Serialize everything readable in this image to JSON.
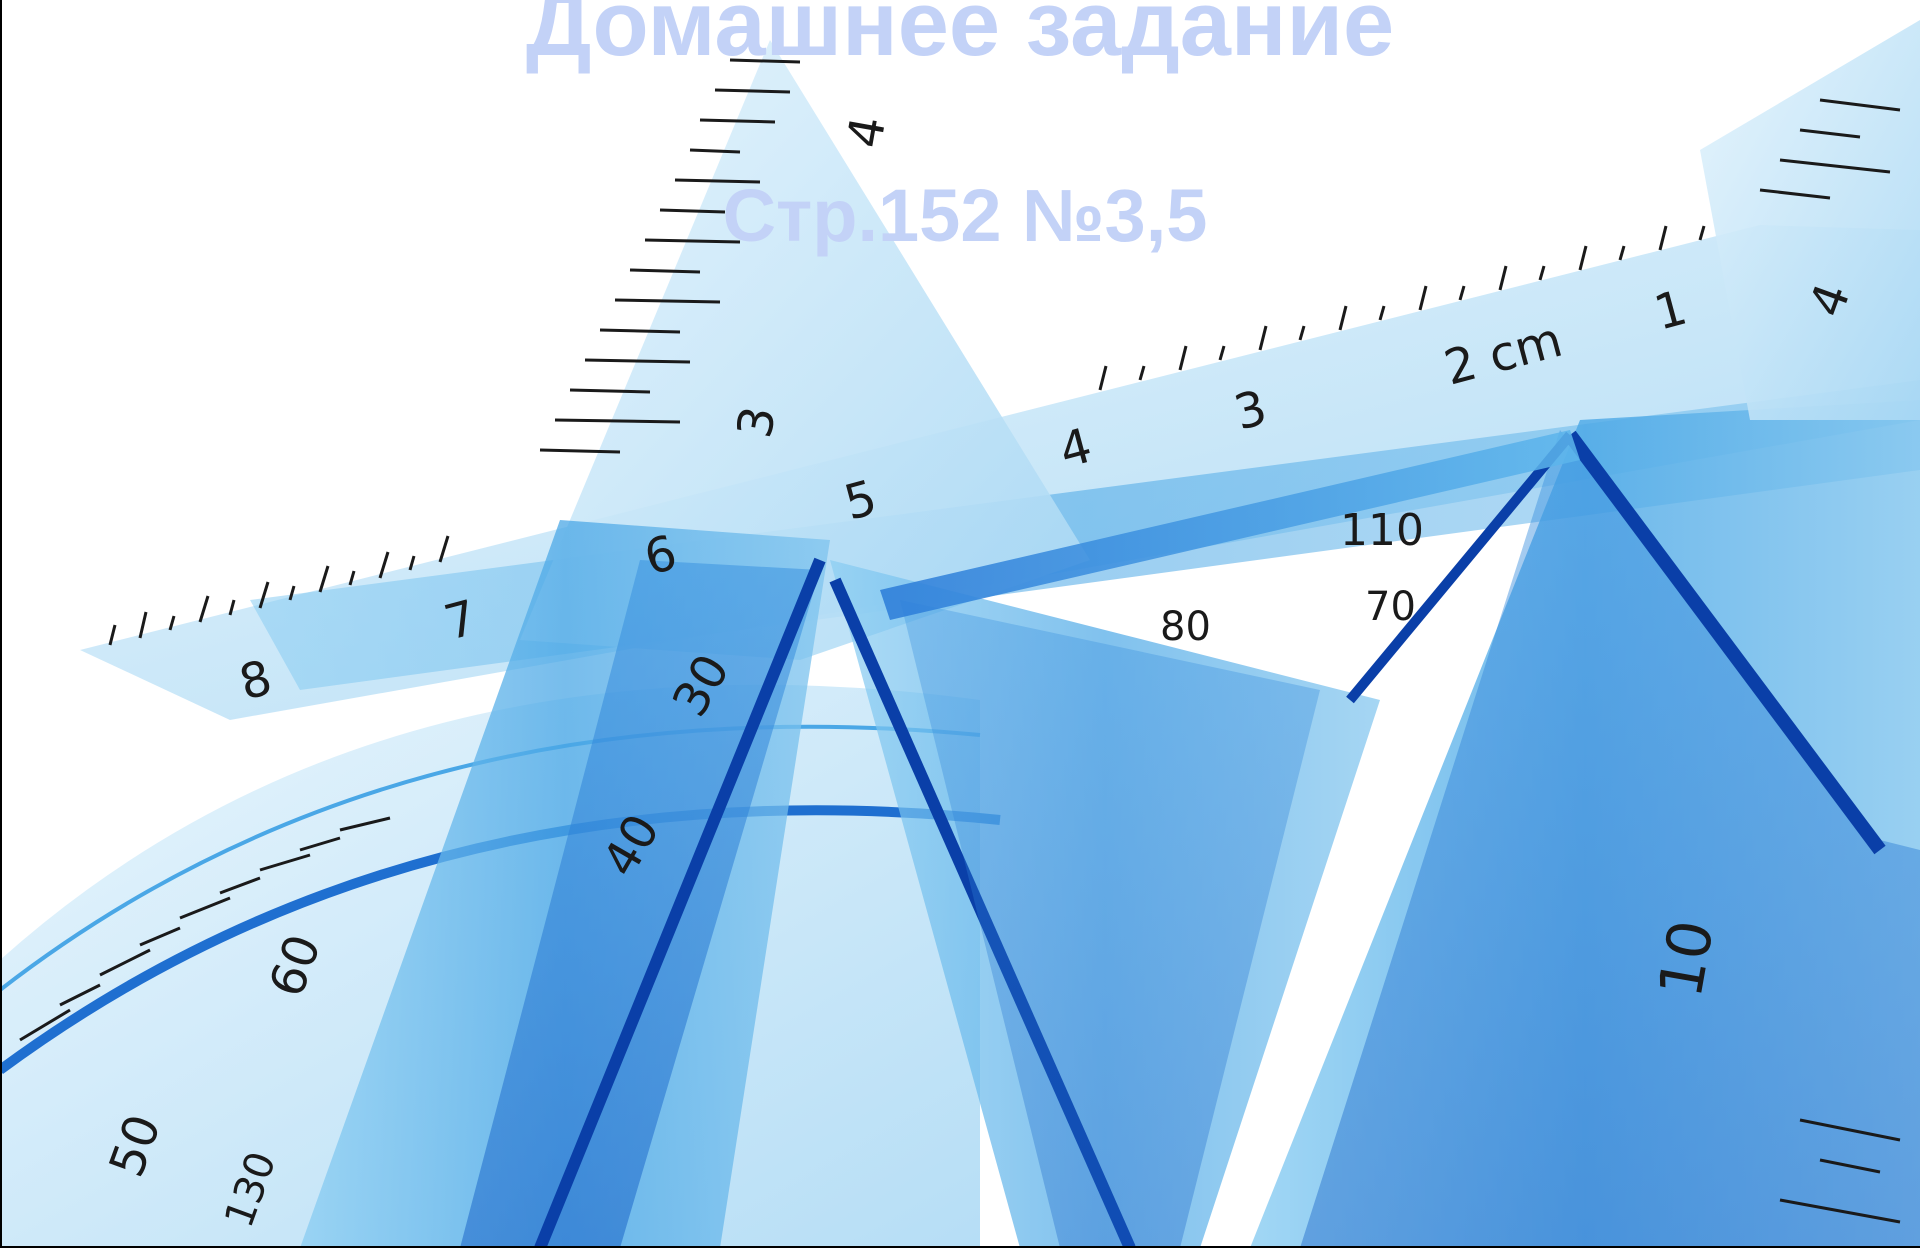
{
  "slide": {
    "title": "Домашнее задание",
    "subtitle": "Стр.152 №3,5"
  },
  "background": {
    "subject": "transparent blue rulers, set squares and protractor",
    "scale_marks": [
      "4",
      "3",
      "8",
      "7",
      "6",
      "5",
      "4",
      "3",
      "2 cm",
      "1",
      "4",
      "110",
      "70",
      "80",
      "60",
      "50",
      "30",
      "40",
      "130",
      "10"
    ]
  },
  "colors": {
    "title": "#c3d2f7",
    "plastic_light": "#bfe3f7",
    "plastic_mid": "#5fb3e8",
    "plastic_deep": "#1f6fd0",
    "plastic_edge": "#0a3fa8",
    "ink": "#1a1a1a"
  }
}
